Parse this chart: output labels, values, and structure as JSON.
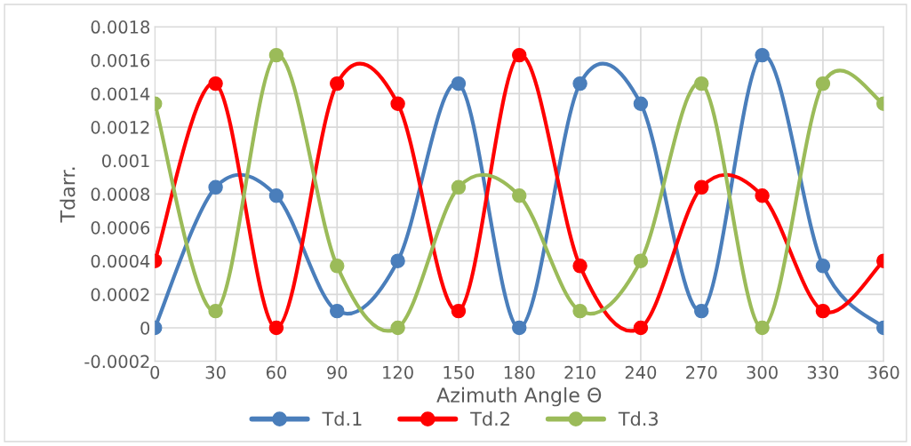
{
  "chart_data": {
    "type": "line",
    "xlabel": "Azimuth Angle Θ",
    "ylabel": "Tdarr.",
    "x": [
      0,
      30,
      60,
      90,
      120,
      150,
      180,
      210,
      240,
      270,
      300,
      330,
      360
    ],
    "series": [
      {
        "name": "Td.1",
        "color": "#4a7ebb",
        "values": [
          0,
          0.00084,
          0.00079,
          0.0001,
          0.0004,
          0.00146,
          0,
          0.00146,
          0.00134,
          0.0001,
          0.00163,
          0.00037,
          0
        ]
      },
      {
        "name": "Td.2",
        "color": "#ff0000",
        "values": [
          0.0004,
          0.00146,
          0,
          0.00146,
          0.00134,
          0.0001,
          0.00163,
          0.00037,
          0,
          0.00084,
          0.00079,
          0.0001,
          0.0004
        ]
      },
      {
        "name": "Td.3",
        "color": "#9bbb59",
        "values": [
          0.00134,
          0.0001,
          0.00163,
          0.00037,
          0,
          0.00084,
          0.00079,
          0.0001,
          0.0004,
          0.00146,
          0,
          0.00146,
          0.00134
        ]
      }
    ],
    "xlim": [
      0,
      360
    ],
    "xticks": [
      0,
      30,
      60,
      90,
      120,
      150,
      180,
      210,
      240,
      270,
      300,
      330,
      360
    ],
    "ylim": [
      -0.0002,
      0.0018
    ],
    "yticks": [
      -0.0002,
      0,
      0.0002,
      0.0004,
      0.0006,
      0.0008,
      0.001,
      0.0012,
      0.0014,
      0.0016,
      0.0018
    ],
    "grid": true,
    "legend": "bottom",
    "marker": "circle",
    "line_style": "solid"
  }
}
